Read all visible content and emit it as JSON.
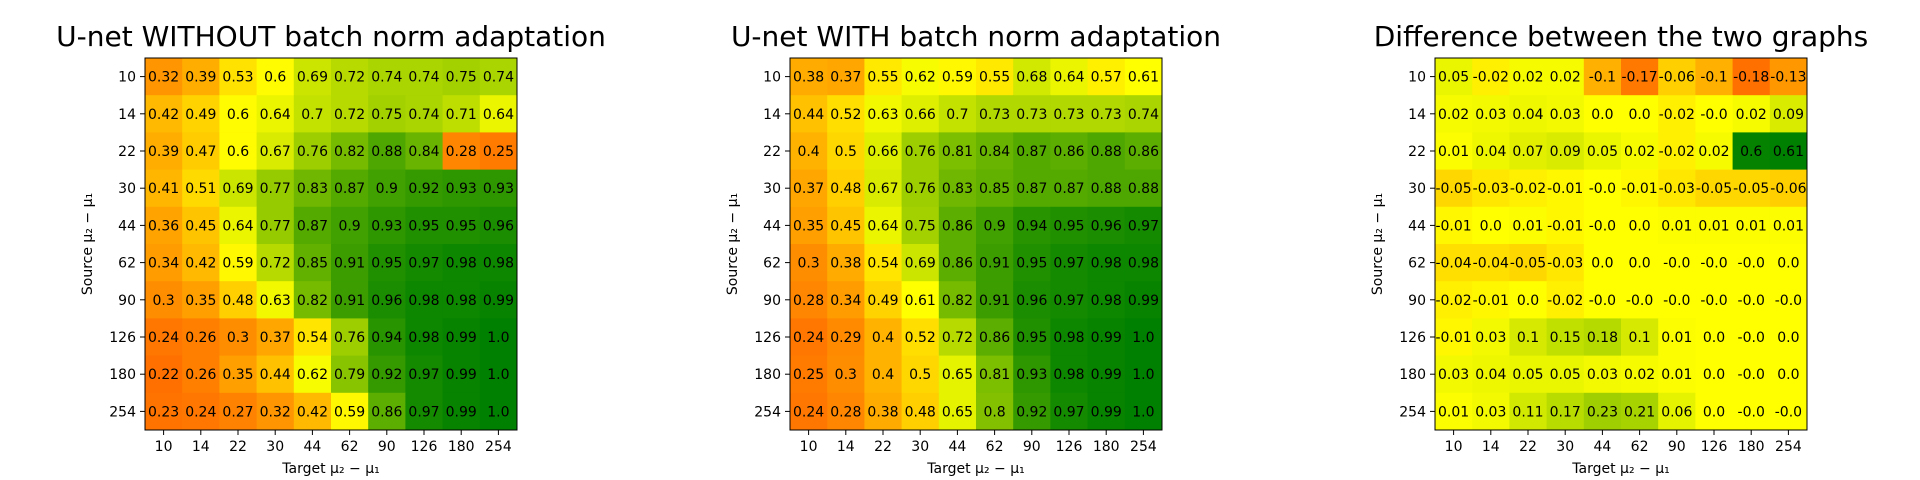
{
  "chart_data": [
    {
      "type": "heatmap",
      "title": "U-net WITHOUT batch norm adaptation",
      "xlabel": "Target μ₂ − μ₁",
      "ylabel": "Source μ₂ − μ₁",
      "x": [
        "10",
        "14",
        "22",
        "30",
        "44",
        "62",
        "90",
        "126",
        "180",
        "254"
      ],
      "y": [
        "10",
        "14",
        "22",
        "30",
        "44",
        "62",
        "90",
        "126",
        "180",
        "254"
      ],
      "values": [
        [
          "0.32",
          "0.39",
          "0.53",
          "0.6",
          "0.69",
          "0.72",
          "0.74",
          "0.74",
          "0.75",
          "0.74"
        ],
        [
          "0.42",
          "0.49",
          "0.6",
          "0.64",
          "0.7",
          "0.72",
          "0.75",
          "0.74",
          "0.71",
          "0.64"
        ],
        [
          "0.39",
          "0.47",
          "0.6",
          "0.67",
          "0.76",
          "0.82",
          "0.88",
          "0.84",
          "0.28",
          "0.25"
        ],
        [
          "0.41",
          "0.51",
          "0.69",
          "0.77",
          "0.83",
          "0.87",
          "0.9",
          "0.92",
          "0.93",
          "0.93"
        ],
        [
          "0.36",
          "0.45",
          "0.64",
          "0.77",
          "0.87",
          "0.9",
          "0.93",
          "0.95",
          "0.95",
          "0.96"
        ],
        [
          "0.34",
          "0.42",
          "0.59",
          "0.72",
          "0.85",
          "0.91",
          "0.95",
          "0.97",
          "0.98",
          "0.98"
        ],
        [
          "0.3",
          "0.35",
          "0.48",
          "0.63",
          "0.82",
          "0.91",
          "0.96",
          "0.98",
          "0.98",
          "0.99"
        ],
        [
          "0.24",
          "0.26",
          "0.3",
          "0.37",
          "0.54",
          "0.76",
          "0.94",
          "0.98",
          "0.99",
          "1.0"
        ],
        [
          "0.22",
          "0.26",
          "0.35",
          "0.44",
          "0.62",
          "0.79",
          "0.92",
          "0.97",
          "0.99",
          "1.0"
        ],
        [
          "0.23",
          "0.24",
          "0.27",
          "0.32",
          "0.42",
          "0.59",
          "0.86",
          "0.97",
          "0.99",
          "1.0"
        ]
      ],
      "colormap": [
        "#ff7000",
        "#ffff00",
        "#008000"
      ],
      "vrange": [
        0.22,
        1.0
      ]
    },
    {
      "type": "heatmap",
      "title": "U-net WITH batch norm adaptation",
      "xlabel": "Target μ₂ − μ₁",
      "ylabel": "Source μ₂ − μ₁",
      "x": [
        "10",
        "14",
        "22",
        "30",
        "44",
        "62",
        "90",
        "126",
        "180",
        "254"
      ],
      "y": [
        "10",
        "14",
        "22",
        "30",
        "44",
        "62",
        "90",
        "126",
        "180",
        "254"
      ],
      "values": [
        [
          "0.38",
          "0.37",
          "0.55",
          "0.62",
          "0.59",
          "0.55",
          "0.68",
          "0.64",
          "0.57",
          "0.61"
        ],
        [
          "0.44",
          "0.52",
          "0.63",
          "0.66",
          "0.7",
          "0.73",
          "0.73",
          "0.73",
          "0.73",
          "0.74"
        ],
        [
          "0.4",
          "0.5",
          "0.66",
          "0.76",
          "0.81",
          "0.84",
          "0.87",
          "0.86",
          "0.88",
          "0.86"
        ],
        [
          "0.37",
          "0.48",
          "0.67",
          "0.76",
          "0.83",
          "0.85",
          "0.87",
          "0.87",
          "0.88",
          "0.88"
        ],
        [
          "0.35",
          "0.45",
          "0.64",
          "0.75",
          "0.86",
          "0.9",
          "0.94",
          "0.95",
          "0.96",
          "0.97"
        ],
        [
          "0.3",
          "0.38",
          "0.54",
          "0.69",
          "0.86",
          "0.91",
          "0.95",
          "0.97",
          "0.98",
          "0.98"
        ],
        [
          "0.28",
          "0.34",
          "0.49",
          "0.61",
          "0.82",
          "0.91",
          "0.96",
          "0.97",
          "0.98",
          "0.99"
        ],
        [
          "0.24",
          "0.29",
          "0.4",
          "0.52",
          "0.72",
          "0.86",
          "0.95",
          "0.98",
          "0.99",
          "1.0"
        ],
        [
          "0.25",
          "0.3",
          "0.4",
          "0.5",
          "0.65",
          "0.81",
          "0.93",
          "0.98",
          "0.99",
          "1.0"
        ],
        [
          "0.24",
          "0.28",
          "0.38",
          "0.48",
          "0.65",
          "0.8",
          "0.92",
          "0.97",
          "0.99",
          "1.0"
        ]
      ],
      "colormap": [
        "#ff7000",
        "#ffff00",
        "#008000"
      ],
      "vrange": [
        0.22,
        1.0
      ]
    },
    {
      "type": "heatmap",
      "title": "Difference between the two graphs",
      "xlabel": "Target μ₂ − μ₁",
      "ylabel": "Source μ₂ − μ₁",
      "x": [
        "10",
        "14",
        "22",
        "30",
        "44",
        "62",
        "90",
        "126",
        "180",
        "254"
      ],
      "y": [
        "10",
        "14",
        "22",
        "30",
        "44",
        "62",
        "90",
        "126",
        "180",
        "254"
      ],
      "values": [
        [
          "0.05",
          "-0.02",
          "0.02",
          "0.02",
          "-0.1",
          "-0.17",
          "-0.06",
          "-0.1",
          "-0.18",
          "-0.13"
        ],
        [
          "0.02",
          "0.03",
          "0.04",
          "0.03",
          "0.0",
          "0.0",
          "-0.02",
          "-0.0",
          "0.02",
          "0.09"
        ],
        [
          "0.01",
          "0.04",
          "0.07",
          "0.09",
          "0.05",
          "0.02",
          "-0.02",
          "0.02",
          "0.6",
          "0.61"
        ],
        [
          "-0.05",
          "-0.03",
          "-0.02",
          "-0.01",
          "-0.0",
          "-0.01",
          "-0.03",
          "-0.05",
          "-0.05",
          "-0.06"
        ],
        [
          "-0.01",
          "0.0",
          "0.01",
          "-0.01",
          "-0.0",
          "0.0",
          "0.01",
          "0.01",
          "0.01",
          "0.01"
        ],
        [
          "-0.04",
          "-0.04",
          "-0.05",
          "-0.03",
          "0.0",
          "0.0",
          "-0.0",
          "-0.0",
          "-0.0",
          "0.0"
        ],
        [
          "-0.02",
          "-0.01",
          "0.0",
          "-0.02",
          "-0.0",
          "-0.0",
          "-0.0",
          "-0.0",
          "-0.0",
          "-0.0"
        ],
        [
          "-0.01",
          "0.03",
          "0.1",
          "0.15",
          "0.18",
          "0.1",
          "0.01",
          "0.0",
          "-0.0",
          "0.0"
        ],
        [
          "0.03",
          "0.04",
          "0.05",
          "0.05",
          "0.03",
          "0.02",
          "0.01",
          "0.0",
          "-0.0",
          "0.0"
        ],
        [
          "0.01",
          "0.03",
          "0.11",
          "0.17",
          "0.23",
          "0.21",
          "0.06",
          "0.0",
          "-0.0",
          "-0.0"
        ]
      ],
      "colormap": [
        "#ff7000",
        "#ffff00",
        "#008000"
      ],
      "vrange": [
        -0.18,
        0.61
      ],
      "vmid": 0.0
    }
  ]
}
